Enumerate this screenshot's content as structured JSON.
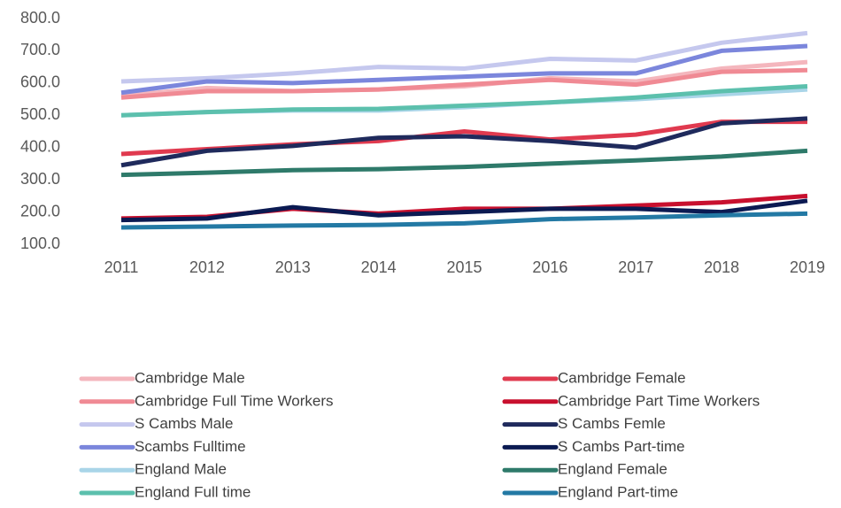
{
  "chart_data": {
    "type": "line",
    "categories": [
      "2011",
      "2012",
      "2013",
      "2014",
      "2015",
      "2016",
      "2017",
      "2018",
      "2019"
    ],
    "ylim": [
      100,
      800
    ],
    "yticks": [
      {
        "value": 100,
        "label": "100.0"
      },
      {
        "value": 200,
        "label": "200.0"
      },
      {
        "value": 300,
        "label": "300.0"
      },
      {
        "value": 400,
        "label": "400.0"
      },
      {
        "value": 500,
        "label": "500.0"
      },
      {
        "value": 600,
        "label": "600.0"
      },
      {
        "value": 700,
        "label": "700.0"
      },
      {
        "value": 800,
        "label": "800.0"
      }
    ],
    "grid": false,
    "series": [
      {
        "name": "Cambridge Male",
        "color": "#f4b6bd",
        "values": [
          560,
          585,
          575,
          580,
          590,
          615,
          605,
          645,
          665
        ]
      },
      {
        "name": "Cambridge Female",
        "color": "#e03a4f",
        "values": [
          380,
          395,
          410,
          420,
          450,
          425,
          440,
          480,
          480
        ]
      },
      {
        "name": "Cambridge Full Time Workers",
        "color": "#f08a94",
        "values": [
          555,
          575,
          575,
          580,
          595,
          610,
          595,
          635,
          640
        ]
      },
      {
        "name": "Cambridge Part Time Workers",
        "color": "#c8102e",
        "values": [
          180,
          185,
          210,
          195,
          210,
          210,
          220,
          230,
          250
        ]
      },
      {
        "name": "S Cambs Male",
        "color": "#c5c8ee",
        "values": [
          605,
          615,
          630,
          650,
          645,
          675,
          670,
          725,
          755
        ]
      },
      {
        "name": "S Cambs Femle",
        "color": "#1f2a5c",
        "values": [
          345,
          390,
          405,
          430,
          435,
          420,
          400,
          475,
          490
        ]
      },
      {
        "name": "Scambs Fulltime",
        "color": "#7b86dc",
        "values": [
          570,
          605,
          600,
          610,
          620,
          630,
          630,
          700,
          715
        ]
      },
      {
        "name": "S Cambs Part-time",
        "color": "#0b1a52",
        "values": [
          175,
          180,
          215,
          190,
          200,
          210,
          210,
          200,
          235
        ]
      },
      {
        "name": "England Male",
        "color": "#a9d5e8",
        "values": [
          500,
          510,
          515,
          515,
          525,
          540,
          550,
          565,
          580
        ]
      },
      {
        "name": "England Female",
        "color": "#2e7a6a",
        "values": [
          315,
          322,
          330,
          333,
          340,
          350,
          360,
          372,
          390
        ]
      },
      {
        "name": "England Full time",
        "color": "#5cc0ad",
        "values": [
          500,
          510,
          518,
          520,
          530,
          540,
          555,
          575,
          590
        ]
      },
      {
        "name": "England Part-time",
        "color": "#2379a4",
        "values": [
          152,
          155,
          158,
          160,
          165,
          178,
          183,
          190,
          195
        ]
      }
    ]
  }
}
